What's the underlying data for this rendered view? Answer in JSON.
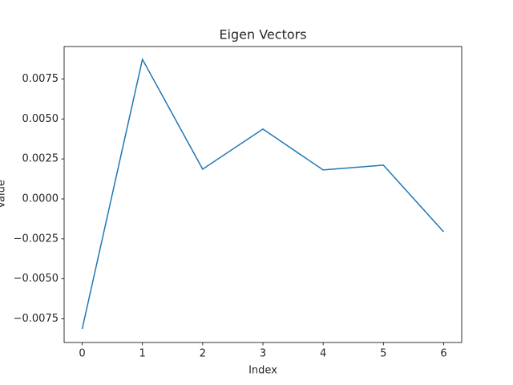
{
  "chart_data": {
    "type": "line",
    "title": "Eigen Vectors",
    "xlabel": "Index",
    "ylabel": "Value",
    "x": [
      0,
      1,
      2,
      3,
      4,
      5,
      6
    ],
    "series": [
      {
        "name": "Eigen Vectors",
        "color": "#1f77b4",
        "values": [
          -0.00813,
          0.00873,
          0.00186,
          0.00437,
          0.00181,
          0.00211,
          -0.00206
        ]
      }
    ],
    "xlim": [
      -0.3,
      6.3
    ],
    "xticks": [
      0,
      1,
      2,
      3,
      4,
      5,
      6
    ],
    "ylim": [
      -0.00898,
      0.00953
    ],
    "yticks": [
      {
        "value": -0.0075,
        "label": "−0.0075"
      },
      {
        "value": -0.005,
        "label": "−0.0050"
      },
      {
        "value": -0.0025,
        "label": "−0.0025"
      },
      {
        "value": 0,
        "label": "0.0000"
      },
      0.0025,
      {
        "value": 0.005,
        "label": "0.0050"
      },
      0.0075
    ]
  }
}
